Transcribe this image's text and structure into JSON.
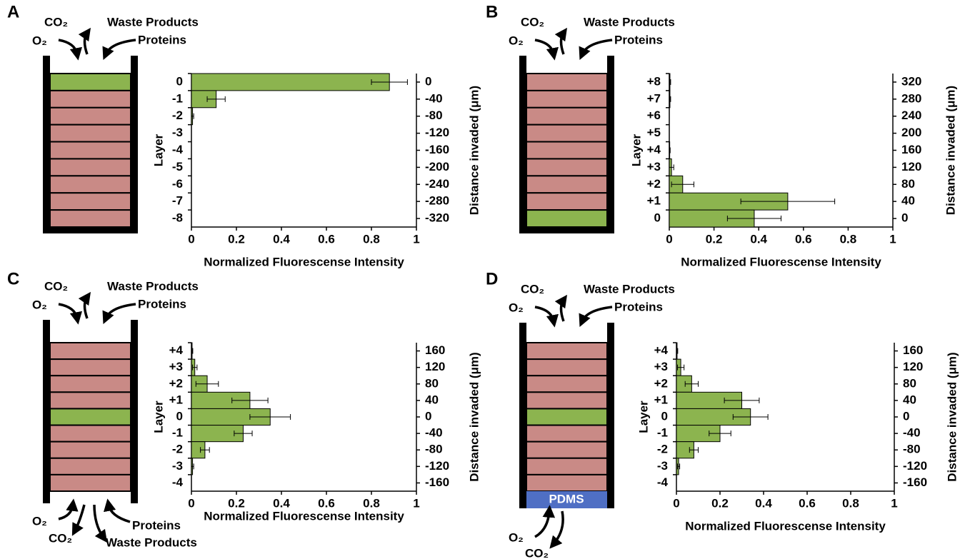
{
  "chart_data": [
    {
      "type": "bar",
      "panel": "A",
      "schematic": {
        "top": {
          "co2": "CO₂",
          "o2": "O₂",
          "waste": "Waste Products",
          "proteins": "Proteins"
        }
      },
      "ylabel": "Layer",
      "y2label": "Distance invaded (μm)",
      "xlabel": "Normalized Fluorescense Intensity",
      "categories": [
        "0",
        "-1",
        "-2",
        "-3",
        "-4",
        "-5",
        "-6",
        "-7",
        "-8"
      ],
      "y2_labels": [
        0,
        -40,
        -80,
        -120,
        -160,
        -200,
        -240,
        -280,
        -320
      ],
      "series": [
        {
          "color": "#8cb44f",
          "values": [
            0.88,
            0.11,
            0.005,
            0,
            0,
            0,
            0,
            0,
            0
          ],
          "errors": [
            0.08,
            0.04,
            0.005,
            0,
            0,
            0,
            0,
            0,
            0
          ]
        }
      ],
      "xlim": [
        0,
        1
      ],
      "xticks": [
        0,
        0.2,
        0.4,
        0.6,
        0.8,
        1
      ]
    },
    {
      "type": "bar",
      "panel": "B",
      "schematic": {
        "top": {
          "co2": "CO₂",
          "o2": "O₂",
          "waste": "Waste Products",
          "proteins": "Proteins"
        }
      },
      "ylabel": "Layer",
      "y2label": "Distance invaded (μm)",
      "xlabel": "Normalized Fluorescense Intensity",
      "categories": [
        "+8",
        "+7",
        "+6",
        "+5",
        "+4",
        "+3",
        "+2",
        "+1",
        "0"
      ],
      "y2_labels": [
        320,
        280,
        240,
        200,
        160,
        120,
        80,
        40,
        0
      ],
      "series": [
        {
          "color": "#8cb44f",
          "values": [
            0.003,
            0.003,
            0,
            0,
            0.002,
            0.01,
            0.06,
            0.53,
            0.38
          ],
          "errors": [
            0.003,
            0.003,
            0,
            0,
            0.002,
            0.01,
            0.05,
            0.21,
            0.12
          ]
        }
      ],
      "xlim": [
        0,
        1
      ],
      "xticks": [
        0,
        0.2,
        0.4,
        0.6,
        0.8,
        1
      ]
    },
    {
      "type": "bar",
      "panel": "C",
      "schematic": {
        "top": {
          "co2": "CO₂",
          "o2": "O₂",
          "waste": "Waste Products",
          "proteins": "Proteins"
        },
        "bottom": {
          "o2": "O₂",
          "co2": "CO₂",
          "proteins": "Proteins",
          "waste": "Waste Products"
        }
      },
      "ylabel": "Layer",
      "y2label": "Distance invaded (μm)",
      "xlabel": "Normalized Fluorescense Intensity",
      "categories": [
        "+4",
        "+3",
        "+2",
        "+1",
        "0",
        "-1",
        "-2",
        "-3",
        "-4"
      ],
      "y2_labels": [
        160,
        120,
        80,
        40,
        0,
        -40,
        -80,
        -120,
        -160
      ],
      "series": [
        {
          "color": "#8cb44f",
          "values": [
            0.003,
            0.015,
            0.07,
            0.26,
            0.35,
            0.23,
            0.06,
            0.005,
            0
          ],
          "errors": [
            0.003,
            0.01,
            0.05,
            0.08,
            0.09,
            0.04,
            0.02,
            0.005,
            0
          ]
        }
      ],
      "xlim": [
        0,
        1
      ],
      "xticks": [
        0,
        0.2,
        0.4,
        0.6,
        0.8,
        1
      ]
    },
    {
      "type": "bar",
      "panel": "D",
      "schematic": {
        "top": {
          "co2": "CO₂",
          "o2": "O₂",
          "waste": "Waste Products",
          "proteins": "Proteins"
        },
        "substrate": "PDMS",
        "bottom": {
          "o2": "O₂",
          "co2": "CO₂"
        }
      },
      "ylabel": "Layer",
      "y2label": "Distance invaded (μm)",
      "xlabel": "Normalized Fluorescense Intensity",
      "categories": [
        "+4",
        "+3",
        "+2",
        "+1",
        "0",
        "-1",
        "-2",
        "-3",
        "-4"
      ],
      "y2_labels": [
        160,
        120,
        80,
        40,
        0,
        -40,
        -80,
        -120,
        -160
      ],
      "series": [
        {
          "color": "#8cb44f",
          "values": [
            0.003,
            0.02,
            0.07,
            0.3,
            0.34,
            0.2,
            0.08,
            0.01,
            0
          ],
          "errors": [
            0.003,
            0.015,
            0.03,
            0.08,
            0.08,
            0.05,
            0.02,
            0.005,
            0
          ]
        }
      ],
      "xlim": [
        0,
        1
      ],
      "xticks": [
        0,
        0.2,
        0.4,
        0.6,
        0.8,
        1
      ]
    }
  ]
}
